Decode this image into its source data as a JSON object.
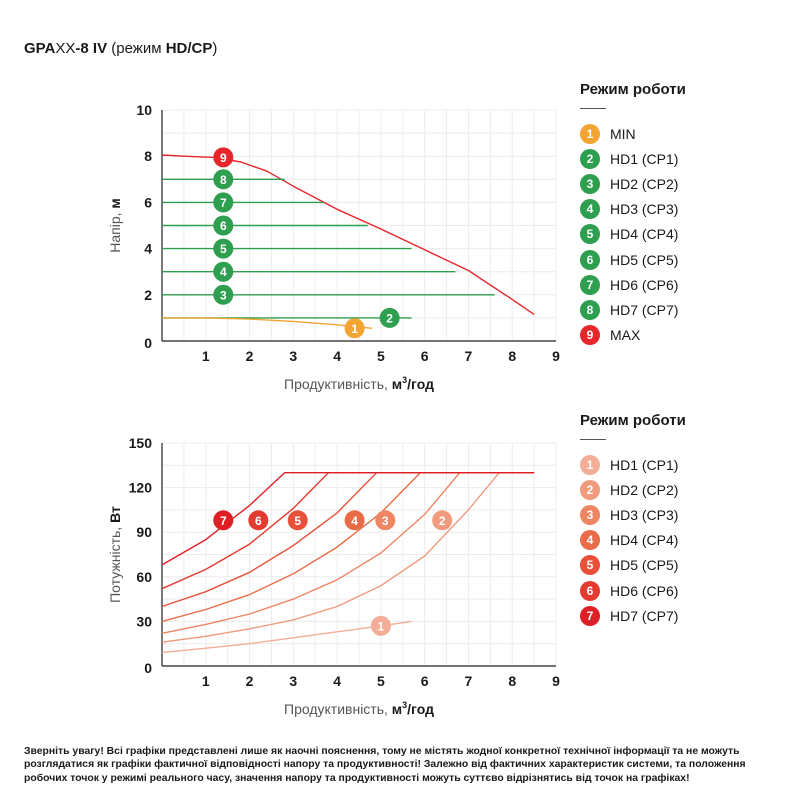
{
  "header": {
    "model_a": "GPA",
    "model_b": "XX",
    "model_c": "-8 IV",
    "mode_open": " (режим ",
    "mode_code": "HD/CP",
    "mode_close": ")"
  },
  "chart_data": [
    {
      "type": "line",
      "xlabel_text": "Продуктивність, ",
      "xlabel_unit_base": "м",
      "xlabel_unit_sup": "3",
      "xlabel_unit_tail": "/год",
      "ylabel_text": "Напір, ",
      "ylabel_unit": "м",
      "xlim": [
        0,
        9
      ],
      "ylim": [
        0,
        10
      ],
      "xticks": [
        "1",
        "2",
        "3",
        "4",
        "5",
        "6",
        "7",
        "8",
        "9"
      ],
      "yticks": [
        "2",
        "4",
        "6",
        "8",
        "10"
      ],
      "origin_label": "0",
      "grid": true,
      "legend_title": "Режим роботи",
      "legend": [
        {
          "num": "1",
          "label": "MIN",
          "color": "#f2a531"
        },
        {
          "num": "2",
          "label": "HD1 (CP1)",
          "color": "#2e9e4f"
        },
        {
          "num": "3",
          "label": "HD2 (CP2)",
          "color": "#2e9e4f"
        },
        {
          "num": "4",
          "label": "HD3 (CP3)",
          "color": "#2e9e4f"
        },
        {
          "num": "5",
          "label": "HD4 (CP4)",
          "color": "#2e9e4f"
        },
        {
          "num": "6",
          "label": "HD5 (CP5)",
          "color": "#2e9e4f"
        },
        {
          "num": "7",
          "label": "HD6 (CP6)",
          "color": "#2e9e4f"
        },
        {
          "num": "8",
          "label": "HD7 (CP7)",
          "color": "#2e9e4f"
        },
        {
          "num": "9",
          "label": "MAX",
          "color": "#e6262b"
        }
      ],
      "series": [
        {
          "num": "9",
          "color": "#e6262b",
          "x": [
            0,
            0.5,
            1.2,
            1.8,
            2.4,
            3.0,
            4.0,
            5.0,
            6.0,
            7.0,
            8.0,
            8.5
          ],
          "y": [
            8.05,
            8.0,
            7.95,
            7.75,
            7.35,
            6.7,
            5.7,
            4.85,
            3.95,
            3.05,
            1.8,
            1.15
          ],
          "marker": [
            1.4,
            7.95
          ]
        },
        {
          "num": "8",
          "color": "#2e9e4f",
          "x": [
            0,
            2.8
          ],
          "y": [
            7,
            7
          ],
          "marker": [
            1.4,
            7
          ]
        },
        {
          "num": "7",
          "color": "#2e9e4f",
          "x": [
            0,
            3.7
          ],
          "y": [
            6,
            6
          ],
          "marker": [
            1.4,
            6
          ]
        },
        {
          "num": "6",
          "color": "#2e9e4f",
          "x": [
            0,
            4.7
          ],
          "y": [
            5,
            5
          ],
          "marker": [
            1.4,
            5
          ]
        },
        {
          "num": "5",
          "color": "#2e9e4f",
          "x": [
            0,
            5.7
          ],
          "y": [
            4,
            4
          ],
          "marker": [
            1.4,
            4
          ]
        },
        {
          "num": "4",
          "color": "#2e9e4f",
          "x": [
            0,
            6.7
          ],
          "y": [
            3,
            3
          ],
          "marker": [
            1.4,
            3
          ]
        },
        {
          "num": "3",
          "color": "#2e9e4f",
          "x": [
            0,
            7.6
          ],
          "y": [
            2,
            2
          ],
          "marker": [
            1.4,
            2
          ]
        },
        {
          "num": "2",
          "color": "#2e9e4f",
          "x": [
            0,
            5.7
          ],
          "y": [
            1,
            1
          ],
          "marker": [
            5.2,
            1
          ]
        },
        {
          "num": "1",
          "color": "#f2a531",
          "x": [
            0,
            1.0,
            2.0,
            3.0,
            4.0,
            4.8
          ],
          "y": [
            1.0,
            1.0,
            0.95,
            0.85,
            0.7,
            0.55
          ],
          "marker": [
            4.4,
            0.55
          ]
        }
      ]
    },
    {
      "type": "line",
      "xlabel_text": "Продуктивність, ",
      "xlabel_unit_base": "м",
      "xlabel_unit_sup": "3",
      "xlabel_unit_tail": "/год",
      "ylabel_text": "Потужність, ",
      "ylabel_unit": "Вт",
      "xlim": [
        0,
        9
      ],
      "ylim": [
        0,
        150
      ],
      "xticks": [
        "1",
        "2",
        "3",
        "4",
        "5",
        "6",
        "7",
        "8",
        "9"
      ],
      "yticks": [
        "30",
        "60",
        "90",
        "120",
        "150"
      ],
      "origin_label": "0",
      "grid": true,
      "legend_title": "Режим роботи",
      "legend": [
        {
          "num": "1",
          "label": "HD1 (CP1)",
          "color": "#f4ad97"
        },
        {
          "num": "2",
          "label": "HD2 (CP2)",
          "color": "#f19a7e"
        },
        {
          "num": "3",
          "label": "HD3 (CP3)",
          "color": "#ee8563"
        },
        {
          "num": "4",
          "label": "HD4 (CP4)",
          "color": "#ea6b48"
        },
        {
          "num": "5",
          "label": "HD5 (CP5)",
          "color": "#e7513a"
        },
        {
          "num": "6",
          "label": "HD6 (CP6)",
          "color": "#e43a2f"
        },
        {
          "num": "7",
          "label": "HD7 (CP7)",
          "color": "#df1f26"
        }
      ],
      "series": [
        {
          "num": "1",
          "color": "#f4ad97",
          "x": [
            0,
            1.0,
            2.0,
            3.0,
            4.0,
            5.0,
            5.7
          ],
          "y": [
            9,
            12,
            15,
            19,
            23,
            27,
            30
          ],
          "marker": [
            5.0,
            27
          ]
        },
        {
          "num": "2",
          "color": "#f19a7e",
          "x": [
            0,
            1.0,
            2.0,
            3.0,
            4.0,
            5.0,
            6.0,
            7.0,
            7.7
          ],
          "y": [
            16,
            20,
            25,
            31,
            40,
            54,
            74,
            105,
            130
          ],
          "marker": [
            6.4,
            98
          ]
        },
        {
          "num": "3",
          "color": "#ee8563",
          "x": [
            0,
            1.0,
            2.0,
            3.0,
            4.0,
            5.0,
            6.0,
            6.8,
            8.5
          ],
          "y": [
            22,
            28,
            35,
            45,
            58,
            76,
            102,
            130,
            130
          ],
          "marker": [
            5.1,
            98
          ]
        },
        {
          "num": "4",
          "color": "#ea6b48",
          "x": [
            0,
            1.0,
            2.0,
            3.0,
            4.0,
            5.0,
            5.9,
            8.5
          ],
          "y": [
            30,
            38,
            48,
            62,
            80,
            103,
            130,
            130
          ],
          "marker": [
            4.4,
            98
          ]
        },
        {
          "num": "5",
          "color": "#e7513a",
          "x": [
            0,
            1.0,
            2.0,
            3.0,
            4.0,
            4.9,
            8.5
          ],
          "y": [
            40,
            50,
            63,
            81,
            103,
            130,
            130
          ],
          "marker": [
            3.1,
            98
          ]
        },
        {
          "num": "6",
          "color": "#e43a2f",
          "x": [
            0,
            1.0,
            2.0,
            3.0,
            3.8,
            8.5
          ],
          "y": [
            52,
            65,
            82,
            106,
            130,
            130
          ],
          "marker": [
            2.2,
            98
          ]
        },
        {
          "num": "7",
          "color": "#df1f26",
          "x": [
            0,
            1.0,
            2.0,
            2.8,
            8.5
          ],
          "y": [
            68,
            85,
            108,
            130,
            130
          ],
          "marker": [
            1.4,
            98
          ]
        }
      ]
    }
  ],
  "note": "Зверніть увагу! Всі графіки представлені лише як наочні пояснення, тому не містять жодної конкретної технічної інформації та не можуть розглядатися як графіки фактичної відповідності напору та продуктивності! Залежно від фактичних характеристик системи, та положення робочих точок у режимі реального часу, значення напору та продуктивності можуть суттєво відрізнятись від точок на графіках!"
}
